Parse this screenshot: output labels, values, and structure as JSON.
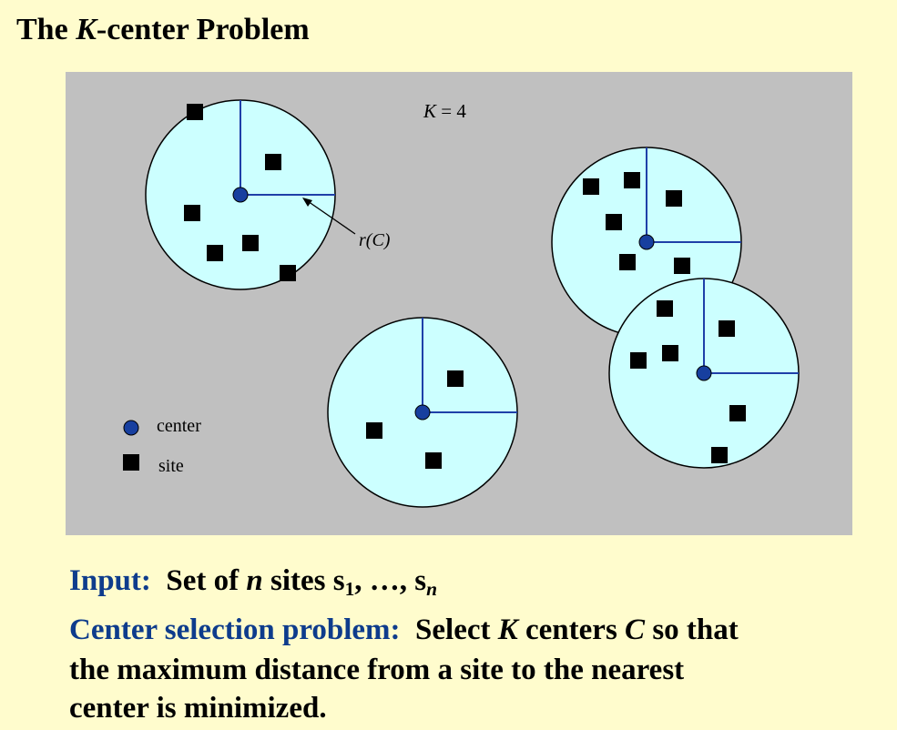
{
  "title": {
    "prefix": "The ",
    "k": "K",
    "suffix": "-center Problem"
  },
  "diagram": {
    "k_label": "K",
    "k_eq": " = 4",
    "radius_label_r": "r",
    "radius_label_c": "(C)",
    "legend": {
      "center": "center",
      "site": "site"
    },
    "colors": {
      "background": "#c0c0c0",
      "circle_fill": "#ccffff",
      "radius_line": "#1f3fa8",
      "center_fill": "#173f9f",
      "site_fill": "#000000"
    }
  },
  "input": {
    "label": "Input:",
    "t1": "Set of ",
    "n": "n",
    "t2": " sites s",
    "sub1": "1",
    "t3": ", …, s",
    "subn": "n"
  },
  "problem": {
    "label": "Center selection problem:",
    "t1": "Select ",
    "k": "K",
    "t2": " centers ",
    "c": "C",
    "t3": " so that",
    "line2": "the maximum distance from a site to the nearest",
    "line3": "center is minimized."
  }
}
